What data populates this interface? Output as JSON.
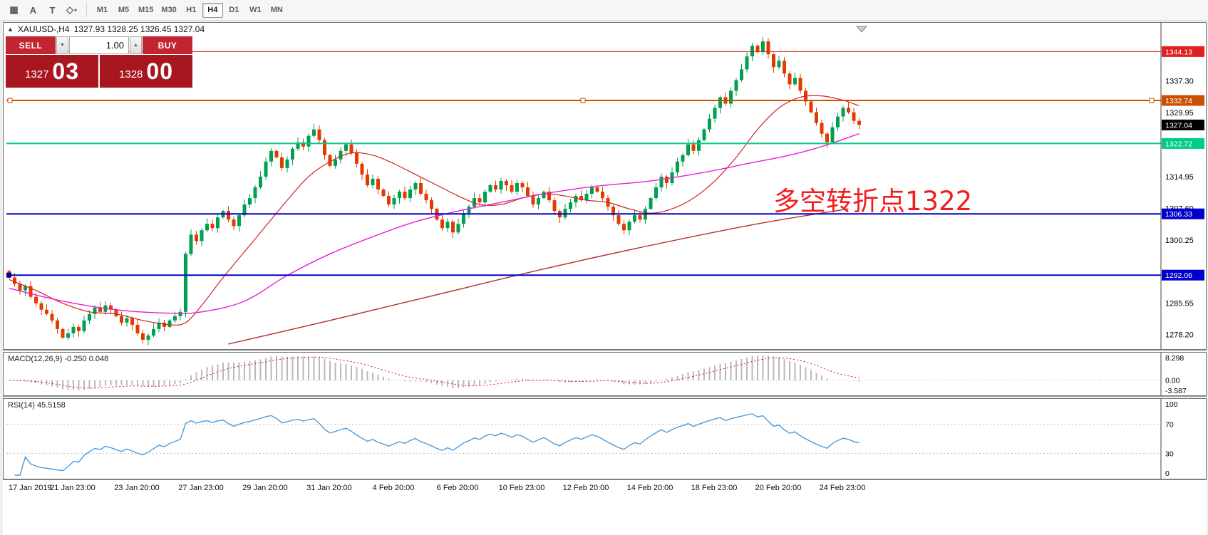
{
  "toolbar": {
    "tools": [
      {
        "name": "grid",
        "glyph": "▦"
      },
      {
        "name": "cursor",
        "glyph": "A"
      },
      {
        "name": "text",
        "glyph": "T"
      },
      {
        "name": "shapes",
        "glyph": "◇",
        "dropdown": "▾"
      }
    ],
    "timeframes": [
      {
        "label": "M1",
        "active": false
      },
      {
        "label": "M5",
        "active": false
      },
      {
        "label": "M15",
        "active": false
      },
      {
        "label": "M30",
        "active": false
      },
      {
        "label": "H1",
        "active": false
      },
      {
        "label": "H4",
        "active": true
      },
      {
        "label": "D1",
        "active": false
      },
      {
        "label": "W1",
        "active": false
      },
      {
        "label": "MN",
        "active": false
      }
    ]
  },
  "header": {
    "arrow": "▲",
    "symbol": "XAUUSD-,H4",
    "ohlc": "1327.93 1328.25 1326.45 1327.04"
  },
  "one_click": {
    "sell_label": "SELL",
    "buy_label": "BUY",
    "lot_value": "1.00",
    "down_glyph": "▼",
    "up_glyph": "▲",
    "sell_price_main": "1327",
    "sell_price_pips": "03",
    "buy_price_main": "1328",
    "buy_price_pips": "00"
  },
  "annotation": {
    "text": "多空转折点1322",
    "color": "#f21d1d"
  },
  "indicators": {
    "macd_label": "MACD(12,26,9) -0.250 0.048",
    "rsi_label": "RSI(14) 45.5158"
  },
  "chart_data": {
    "type": "candlestick",
    "symbol": "XAUUSD-",
    "timeframe": "H4",
    "ohlc_current": {
      "open": 1327.93,
      "high": 1328.25,
      "low": 1326.45,
      "close": 1327.04
    },
    "up_color": "#00a050",
    "down_color": "#e23b00",
    "price_range": [
      1275.5,
      1350.5
    ],
    "first_open": 1293.0,
    "closes": [
      1291.5,
      1290.0,
      1288.5,
      1289.5,
      1287.0,
      1285.5,
      1284.0,
      1283.0,
      1281.5,
      1279.5,
      1277.5,
      1278.5,
      1280.0,
      1279.0,
      1281.5,
      1283.0,
      1284.5,
      1283.5,
      1285.0,
      1284.0,
      1282.5,
      1281.0,
      1282.0,
      1280.5,
      1278.5,
      1277.0,
      1278.0,
      1279.5,
      1281.0,
      1280.0,
      1281.5,
      1282.5,
      1283.5,
      1297.0,
      1301.5,
      1300.0,
      1302.5,
      1304.0,
      1303.0,
      1305.5,
      1307.0,
      1305.0,
      1303.5,
      1306.0,
      1308.5,
      1310.0,
      1312.5,
      1315.0,
      1318.5,
      1321.0,
      1319.5,
      1317.0,
      1319.0,
      1321.5,
      1323.0,
      1322.0,
      1324.5,
      1326.0,
      1323.5,
      1320.0,
      1317.5,
      1319.0,
      1321.0,
      1322.5,
      1320.5,
      1318.0,
      1315.5,
      1313.0,
      1314.5,
      1312.0,
      1310.5,
      1308.5,
      1310.0,
      1311.5,
      1310.0,
      1312.0,
      1313.5,
      1311.0,
      1309.5,
      1307.5,
      1305.0,
      1303.0,
      1304.5,
      1302.0,
      1304.0,
      1306.5,
      1308.0,
      1310.0,
      1309.0,
      1311.5,
      1313.0,
      1312.0,
      1314.0,
      1313.0,
      1311.5,
      1313.5,
      1312.5,
      1310.5,
      1308.5,
      1310.0,
      1311.5,
      1309.5,
      1307.0,
      1305.5,
      1307.5,
      1309.0,
      1310.5,
      1309.5,
      1311.0,
      1312.5,
      1311.5,
      1310.0,
      1308.0,
      1306.0,
      1304.0,
      1302.5,
      1304.5,
      1306.0,
      1305.0,
      1307.5,
      1310.0,
      1312.5,
      1315.0,
      1313.5,
      1316.0,
      1318.5,
      1320.0,
      1322.5,
      1321.0,
      1323.5,
      1326.0,
      1328.5,
      1331.0,
      1333.5,
      1332.0,
      1335.0,
      1337.5,
      1340.0,
      1343.0,
      1345.5,
      1344.0,
      1346.5,
      1343.5,
      1340.5,
      1342.0,
      1339.0,
      1336.5,
      1338.0,
      1335.0,
      1332.5,
      1330.0,
      1327.5,
      1325.0,
      1323.0,
      1326.5,
      1329.0,
      1331.0,
      1330.0,
      1328.0,
      1327.04
    ],
    "price_axis_ticks": [
      {
        "label": "1337.30",
        "price": 1337.3
      },
      {
        "label": "1329.95",
        "price": 1329.95
      },
      {
        "label": "1314.95",
        "price": 1314.95
      },
      {
        "label": "1307.60",
        "price": 1307.6
      },
      {
        "label": "1300.25",
        "price": 1300.25
      },
      {
        "label": "1285.55",
        "price": 1285.55
      },
      {
        "label": "1278.20",
        "price": 1278.2
      }
    ],
    "hlines": [
      {
        "price": 1344.13,
        "label": "1344.13",
        "color": "#e02020",
        "width": 1,
        "badge_bg": "#e02020",
        "handles": "none"
      },
      {
        "price": 1332.74,
        "label": "1332.74",
        "color": "#c85000",
        "width": 2,
        "badge_bg": "#c85000",
        "handles": "full"
      },
      {
        "price": 1322.72,
        "label": "1322.72",
        "color": "#00cc85",
        "width": 2,
        "badge_bg": "#00cc85",
        "handles": "none"
      },
      {
        "price": 1306.33,
        "label": "1306.33",
        "color": "#0000cc",
        "width": 2,
        "badge_bg": "#0000cc",
        "handles": "none"
      },
      {
        "price": 1292.06,
        "label": "1292.06",
        "color": "#0000cc",
        "width": 2,
        "badge_bg": "#0000cc",
        "handles": "left"
      }
    ],
    "current_price": {
      "price": 1327.04,
      "label": "1327.04",
      "badge_bg": "#000000"
    },
    "moving_averages": [
      {
        "name": "ma-fast-red",
        "color": "#d81f1f",
        "width": 1.2,
        "points": [
          [
            0,
            1291
          ],
          [
            5,
            1288.5
          ],
          [
            10,
            1285.5
          ],
          [
            15,
            1283.5
          ],
          [
            20,
            1283
          ],
          [
            25,
            1281.5
          ],
          [
            30,
            1280.5
          ],
          [
            33,
            1281
          ],
          [
            36,
            1285
          ],
          [
            40,
            1291.5
          ],
          [
            44,
            1297.5
          ],
          [
            48,
            1303.5
          ],
          [
            52,
            1309.5
          ],
          [
            56,
            1315
          ],
          [
            60,
            1318.5
          ],
          [
            64,
            1320.5
          ],
          [
            68,
            1320
          ],
          [
            72,
            1318
          ],
          [
            76,
            1315.5
          ],
          [
            80,
            1313
          ],
          [
            84,
            1310.5
          ],
          [
            88,
            1308.5
          ],
          [
            92,
            1308.5
          ],
          [
            96,
            1310
          ],
          [
            100,
            1311
          ],
          [
            104,
            1310.5
          ],
          [
            108,
            1309.5
          ],
          [
            112,
            1309
          ],
          [
            116,
            1307.5
          ],
          [
            120,
            1306.5
          ],
          [
            124,
            1307.5
          ],
          [
            128,
            1310
          ],
          [
            132,
            1314
          ],
          [
            136,
            1319.5
          ],
          [
            140,
            1326
          ],
          [
            144,
            1331
          ],
          [
            148,
            1333.5
          ],
          [
            152,
            1333.8
          ],
          [
            156,
            1332.8
          ],
          [
            159,
            1331.5
          ]
        ]
      },
      {
        "name": "ma-mid-magenta",
        "color": "#e520d5",
        "width": 1.4,
        "points": [
          [
            0,
            1289
          ],
          [
            10,
            1286
          ],
          [
            20,
            1284
          ],
          [
            30,
            1283.2
          ],
          [
            36,
            1283.5
          ],
          [
            44,
            1286
          ],
          [
            52,
            1292
          ],
          [
            60,
            1297
          ],
          [
            68,
            1301
          ],
          [
            76,
            1304.5
          ],
          [
            84,
            1307
          ],
          [
            92,
            1309
          ],
          [
            100,
            1311
          ],
          [
            110,
            1312.8
          ],
          [
            120,
            1314
          ],
          [
            130,
            1316
          ],
          [
            138,
            1318
          ],
          [
            146,
            1320
          ],
          [
            152,
            1322
          ],
          [
            159,
            1325
          ]
        ]
      },
      {
        "name": "ma-slow-darkred",
        "color": "#b03030",
        "width": 1.4,
        "points": [
          [
            41,
            1276
          ],
          [
            60,
            1281.5
          ],
          [
            80,
            1287.5
          ],
          [
            100,
            1293.5
          ],
          [
            120,
            1299
          ],
          [
            140,
            1304
          ],
          [
            157,
            1307.5
          ]
        ]
      }
    ],
    "macd": {
      "params": "12,26,9",
      "value_main": -0.25,
      "value_signal": 0.048,
      "axis": [
        "8.298",
        "0.00",
        "-3.587"
      ],
      "top": 8.298,
      "bottom": -3.587,
      "hist_color": "#b9b9b9",
      "signal_color": "#e01010"
    },
    "rsi": {
      "period": 14,
      "value": 45.5158,
      "axis_labels": [
        {
          "label": "100",
          "value": 100
        },
        {
          "label": "70",
          "value": 70
        },
        {
          "label": "30",
          "value": 30
        },
        {
          "label": "0",
          "value": 0
        }
      ],
      "levels": [
        70,
        30
      ],
      "color": "#4a9bdc"
    },
    "time_labels": [
      {
        "idx": 0,
        "label": "17 Jan 2019"
      },
      {
        "idx": 12,
        "label": "21 Jan 23:00"
      },
      {
        "idx": 24,
        "label": "23 Jan 20:00"
      },
      {
        "idx": 36,
        "label": "27 Jan 23:00"
      },
      {
        "idx": 48,
        "label": "29 Jan 20:00"
      },
      {
        "idx": 60,
        "label": "31 Jan 20:00"
      },
      {
        "idx": 72,
        "label": "4 Feb 20:00"
      },
      {
        "idx": 84,
        "label": "6 Feb 20:00"
      },
      {
        "idx": 96,
        "label": "10 Feb 23:00"
      },
      {
        "idx": 108,
        "label": "12 Feb 20:00"
      },
      {
        "idx": 120,
        "label": "14 Feb 20:00"
      },
      {
        "idx": 132,
        "label": "18 Feb 23:00"
      },
      {
        "idx": 144,
        "label": "20 Feb 20:00"
      },
      {
        "idx": 156,
        "label": "24 Feb 23:00"
      }
    ]
  }
}
